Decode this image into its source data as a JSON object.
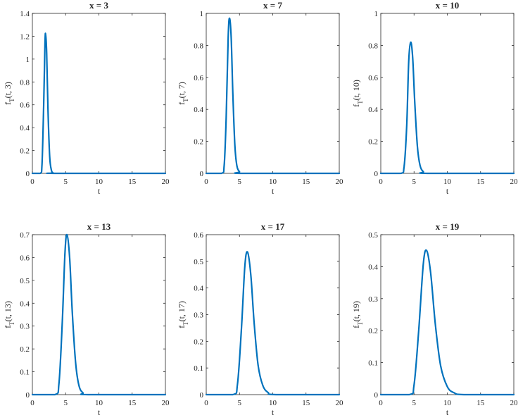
{
  "colors": {
    "line": "#0072BD",
    "axis": "#262626",
    "background": "#ffffff"
  },
  "chart_data": [
    {
      "type": "line",
      "title": "x = 3",
      "xlabel": "t",
      "ylabel_main": "f",
      "ylabel_sub": "T",
      "ylabel_args": "(t, 3)",
      "xlim": [
        0,
        20
      ],
      "ylim": [
        0,
        1.4
      ],
      "xticks": [
        0,
        5,
        10,
        15,
        20
      ],
      "yticks": [
        0,
        0.2,
        0.4,
        0.6,
        0.8,
        1,
        1.2,
        1.4
      ],
      "ytick_labels": [
        "0",
        "0.2",
        "0.4",
        "0.6",
        "0.8",
        "1",
        "1.2",
        "1.4"
      ],
      "grid": false,
      "peak": {
        "t": 2.0,
        "value": 1.21
      },
      "series": [
        {
          "x": [
            0,
            1.2,
            1.45,
            1.7,
            1.9,
            2.0,
            2.15,
            2.35,
            2.6,
            2.85,
            3.1,
            3.5,
            20
          ],
          "y": [
            0,
            0,
            0.08,
            0.6,
            1.15,
            1.21,
            1.05,
            0.55,
            0.15,
            0.03,
            0.004,
            0,
            0
          ]
        }
      ]
    },
    {
      "type": "line",
      "title": "x = 7",
      "xlabel": "t",
      "ylabel_main": "f",
      "ylabel_sub": "T",
      "ylabel_args": "(t, 7)",
      "xlim": [
        0,
        20
      ],
      "ylim": [
        0,
        1
      ],
      "xticks": [
        0,
        5,
        10,
        15,
        20
      ],
      "yticks": [
        0,
        0.2,
        0.4,
        0.6,
        0.8,
        1
      ],
      "ytick_labels": [
        "0",
        "0.2",
        "0.4",
        "0.6",
        "0.8",
        "1"
      ],
      "grid": false,
      "peak": {
        "t": 3.5,
        "value": 0.97
      },
      "series": [
        {
          "x": [
            0,
            2.3,
            2.7,
            3.0,
            3.3,
            3.5,
            3.75,
            4.0,
            4.3,
            4.6,
            5.0,
            5.5,
            20
          ],
          "y": [
            0,
            0,
            0.05,
            0.35,
            0.85,
            0.97,
            0.85,
            0.5,
            0.18,
            0.05,
            0.01,
            0,
            0
          ]
        }
      ]
    },
    {
      "type": "line",
      "title": "x = 10",
      "xlabel": "t",
      "ylabel_main": "f",
      "ylabel_sub": "T",
      "ylabel_args": "(t, 10)",
      "xlim": [
        0,
        20
      ],
      "ylim": [
        0,
        1
      ],
      "xticks": [
        0,
        5,
        10,
        15,
        20
      ],
      "yticks": [
        0,
        0.2,
        0.4,
        0.6,
        0.8,
        1
      ],
      "ytick_labels": [
        "0",
        "0.2",
        "0.4",
        "0.6",
        "0.8",
        "1"
      ],
      "grid": false,
      "peak": {
        "t": 4.5,
        "value": 0.82
      },
      "series": [
        {
          "x": [
            0,
            3.0,
            3.5,
            3.9,
            4.2,
            4.5,
            4.8,
            5.1,
            5.5,
            5.9,
            6.4,
            7.0,
            20
          ],
          "y": [
            0,
            0,
            0.04,
            0.3,
            0.7,
            0.82,
            0.72,
            0.45,
            0.17,
            0.05,
            0.01,
            0,
            0
          ]
        }
      ]
    },
    {
      "type": "line",
      "title": "x = 13",
      "xlabel": "t",
      "ylabel_main": "f",
      "ylabel_sub": "T",
      "ylabel_args": "(t, 13)",
      "xlim": [
        0,
        20
      ],
      "ylim": [
        0,
        0.7
      ],
      "xticks": [
        0,
        5,
        10,
        15,
        20
      ],
      "yticks": [
        0,
        0.1,
        0.2,
        0.3,
        0.4,
        0.5,
        0.6,
        0.7
      ],
      "ytick_labels": [
        "0",
        "0.1",
        "0.2",
        "0.3",
        "0.4",
        "0.5",
        "0.6",
        "0.7"
      ],
      "grid": false,
      "peak": {
        "t": 5.2,
        "value": 0.7
      },
      "series": [
        {
          "x": [
            0,
            3.4,
            4.0,
            4.5,
            4.9,
            5.2,
            5.6,
            6.0,
            6.5,
            7.0,
            7.6,
            8.4,
            20
          ],
          "y": [
            0,
            0,
            0.05,
            0.32,
            0.62,
            0.7,
            0.6,
            0.36,
            0.14,
            0.04,
            0.008,
            0,
            0
          ]
        }
      ]
    },
    {
      "type": "line",
      "title": "x = 17",
      "xlabel": "t",
      "ylabel_main": "f",
      "ylabel_sub": "T",
      "ylabel_args": "(t, 17)",
      "xlim": [
        0,
        20
      ],
      "ylim": [
        0,
        0.6
      ],
      "xticks": [
        0,
        5,
        10,
        15,
        20
      ],
      "yticks": [
        0,
        0.1,
        0.2,
        0.3,
        0.4,
        0.5,
        0.6
      ],
      "ytick_labels": [
        "0",
        "0.1",
        "0.2",
        "0.3",
        "0.4",
        "0.5",
        "0.6"
      ],
      "grid": false,
      "peak": {
        "t": 6.2,
        "value": 0.535
      },
      "series": [
        {
          "x": [
            0,
            4.0,
            4.7,
            5.3,
            5.8,
            6.2,
            6.7,
            7.2,
            7.8,
            8.5,
            9.3,
            10.5,
            20
          ],
          "y": [
            0,
            0,
            0.04,
            0.25,
            0.48,
            0.535,
            0.45,
            0.27,
            0.11,
            0.035,
            0.008,
            0,
            0
          ]
        }
      ]
    },
    {
      "type": "line",
      "title": "x = 19",
      "xlabel": "t",
      "ylabel_main": "f",
      "ylabel_sub": "T",
      "ylabel_args": "(t, 19)",
      "xlim": [
        0,
        20
      ],
      "ylim": [
        0,
        0.5
      ],
      "xticks": [
        0,
        5,
        10,
        15,
        20
      ],
      "yticks": [
        0,
        0.1,
        0.2,
        0.3,
        0.4,
        0.5
      ],
      "ytick_labels": [
        "0",
        "0.1",
        "0.2",
        "0.3",
        "0.4",
        "0.5"
      ],
      "grid": false,
      "peak": {
        "t": 6.9,
        "value": 0.45
      },
      "series": [
        {
          "x": [
            0,
            4.3,
            5.0,
            5.7,
            6.4,
            6.9,
            7.5,
            8.2,
            9.0,
            10.0,
            11.0,
            12.5,
            20
          ],
          "y": [
            0,
            0,
            0.03,
            0.2,
            0.41,
            0.45,
            0.38,
            0.22,
            0.09,
            0.025,
            0.006,
            0,
            0
          ]
        }
      ]
    }
  ]
}
